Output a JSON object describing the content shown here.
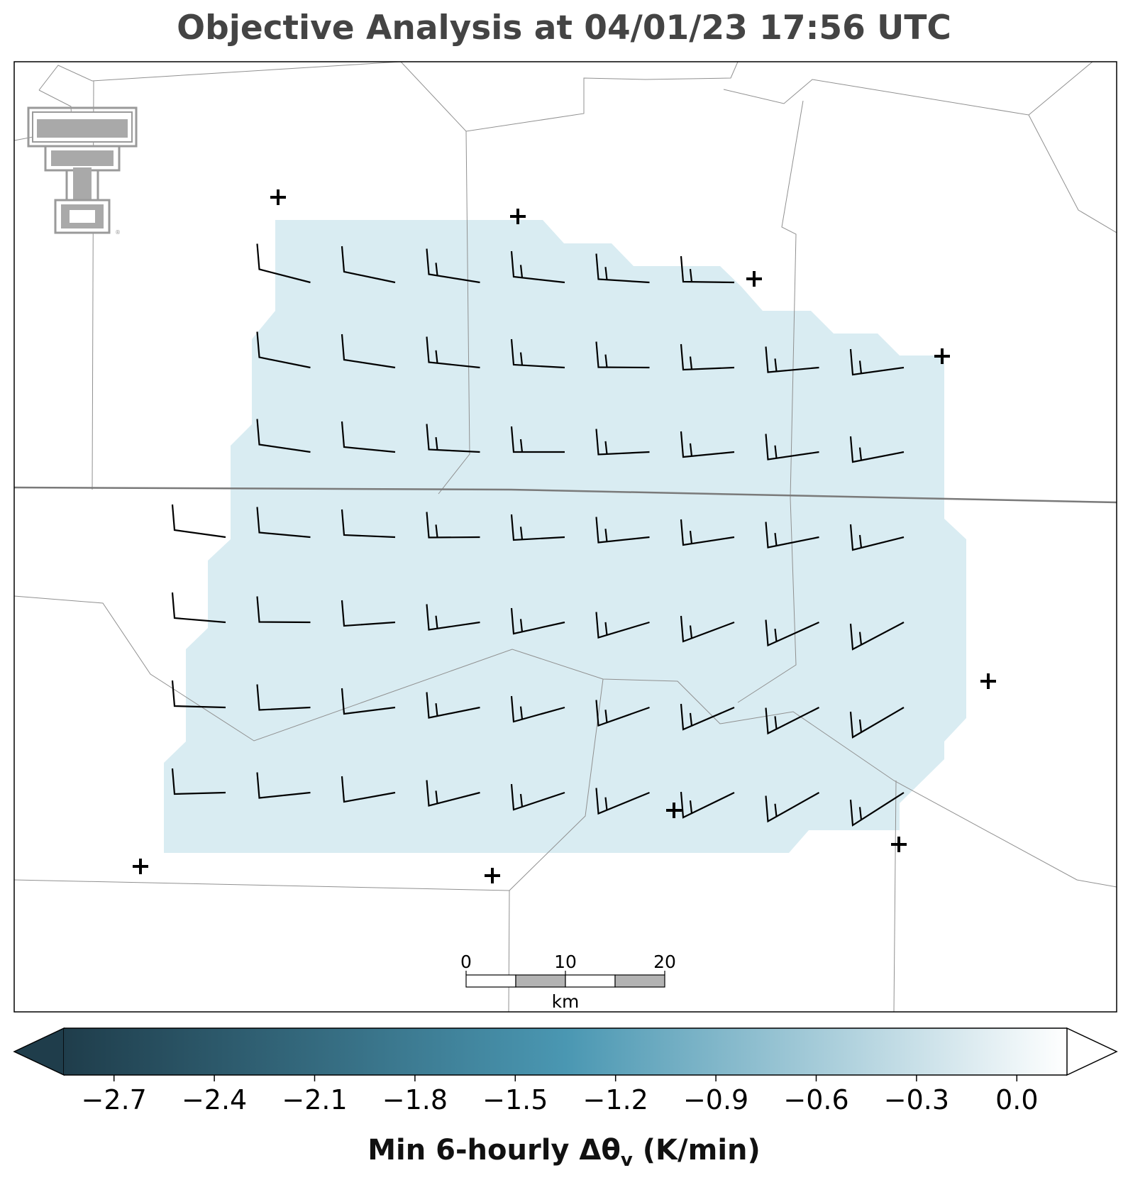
{
  "title": "Objective Analysis at 04/01/23 17:56 UTC",
  "colorbar": {
    "label_main": "Min 6-hourly Δθ",
    "label_sub": "v",
    "label_unit": " (K/min)",
    "ticks": [
      "−2.7",
      "−2.4",
      "−2.1",
      "−1.8",
      "−1.5",
      "−1.2",
      "−0.9",
      "−0.6",
      "−0.3",
      "0.0"
    ],
    "tick_values": [
      -2.7,
      -2.4,
      -2.1,
      -1.8,
      -1.5,
      -1.2,
      -0.9,
      -0.6,
      -0.3,
      0.0
    ],
    "range": [
      -2.85,
      0.15
    ],
    "color_low": "#1f3d4b",
    "color_mid": "#4a97b2",
    "color_high": "#ffffff",
    "extend": "both"
  },
  "field": {
    "value": -0.5,
    "color": "#d9ecf2"
  },
  "scalebar": {
    "labels": [
      "0",
      "10",
      "20"
    ],
    "unit": "km"
  },
  "logo": {
    "name": "Texas Tech Double T"
  },
  "stations_icon": "plus-marker",
  "wind_barbs_icon": "wind-barb"
}
